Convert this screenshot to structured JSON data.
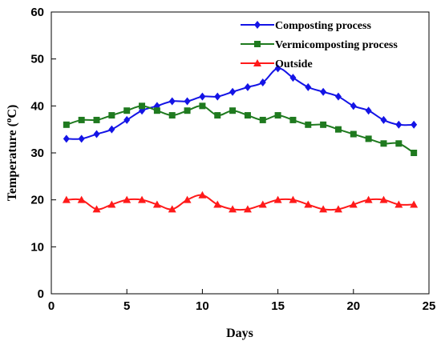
{
  "chart_data": {
    "type": "line",
    "xlabel": "Days",
    "ylabel_main": "Temperature (",
    "ylabel_sup": "o",
    "ylabel_end": "C)",
    "xlim": [
      0,
      25
    ],
    "ylim": [
      0,
      60
    ],
    "x_ticks": [
      "0",
      "5",
      "10",
      "15",
      "20",
      "25"
    ],
    "y_ticks": [
      "0",
      "10",
      "20",
      "30",
      "40",
      "50",
      "60"
    ],
    "grid": false,
    "legend_position": "top-right",
    "x": [
      1,
      2,
      3,
      4,
      5,
      6,
      7,
      8,
      9,
      10,
      11,
      12,
      13,
      14,
      15,
      16,
      17,
      18,
      19,
      20,
      21,
      22,
      23,
      24
    ],
    "series": [
      {
        "name": "Composting process",
        "color": "#1414e6",
        "marker": "diamond",
        "values": [
          33,
          33,
          34,
          35,
          37,
          39,
          40,
          41,
          41,
          42,
          42,
          43,
          44,
          45,
          48,
          46,
          44,
          43,
          42,
          40,
          39,
          37,
          36,
          36
        ]
      },
      {
        "name": "Vermicomposting process",
        "color": "#1f7a1f",
        "marker": "square",
        "values": [
          36,
          37,
          37,
          38,
          39,
          40,
          39,
          38,
          39,
          40,
          38,
          39,
          38,
          37,
          38,
          37,
          36,
          36,
          35,
          34,
          33,
          32,
          32,
          30
        ]
      },
      {
        "name": "Outside",
        "color": "#ff1a1a",
        "marker": "triangle",
        "values": [
          20,
          20,
          18,
          19,
          20,
          20,
          19,
          18,
          20,
          21,
          19,
          18,
          18,
          19,
          20,
          20,
          19,
          18,
          18,
          19,
          20,
          20,
          19,
          19
        ]
      }
    ]
  }
}
